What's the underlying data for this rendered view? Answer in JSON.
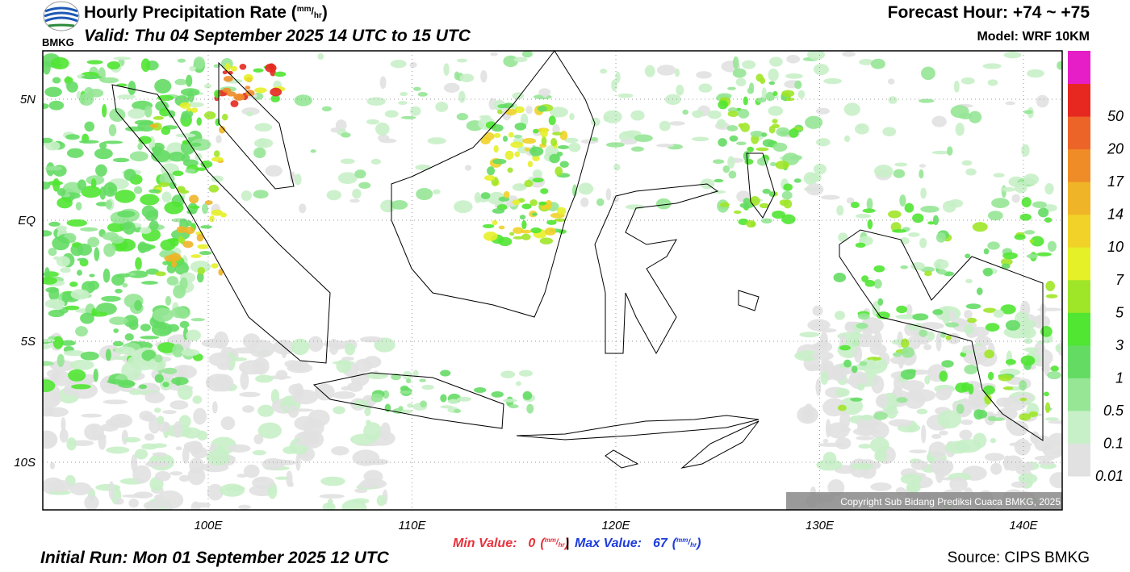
{
  "header": {
    "logo": "BMKG",
    "title": [
      "Hourly Precipitation Rate (",
      "mm",
      "/",
      "hr",
      ")"
    ],
    "valid": "Valid: Thu 04 September 2025 14 UTC to 15 UTC",
    "forecast_hour": "Forecast Hour: +74 ~ +75",
    "model": "Model: WRF 10KM"
  },
  "map": {
    "lat_labels": [
      "5N",
      "EQ",
      "5S",
      "10S"
    ],
    "lon_labels": [
      "100E",
      "110E",
      "120E",
      "130E",
      "140E"
    ],
    "copyright": "Copyright Sub Bidang Prediksi Cuaca BMKG, 2025"
  },
  "legend": {
    "colors": [
      "#e1e1e1",
      "#c8f0c8",
      "#96e696",
      "#64dc64",
      "#50e632",
      "#a0e628",
      "#e6f028",
      "#f0d228",
      "#f0b428",
      "#f08c28",
      "#ec6428",
      "#e62820",
      "#e61ec8"
    ],
    "labels": [
      "0.01",
      "0.1",
      "0.5",
      "1",
      "3",
      "5",
      "7",
      "10",
      "14",
      "17",
      "20",
      "50"
    ]
  },
  "footer": {
    "min": {
      "label": "Min Value:",
      "value": 0,
      "unit": [
        "(",
        "mm",
        "/",
        "hr",
        ")"
      ]
    },
    "separator": "|",
    "max": {
      "label": "Max Value:",
      "value": 67,
      "unit": [
        "(",
        "mm",
        "/",
        "hr",
        ")"
      ]
    },
    "initial_run": "Initial Run: Mon 01 September 2025 12 UTC",
    "source": "Source: CIPS BMKG"
  }
}
